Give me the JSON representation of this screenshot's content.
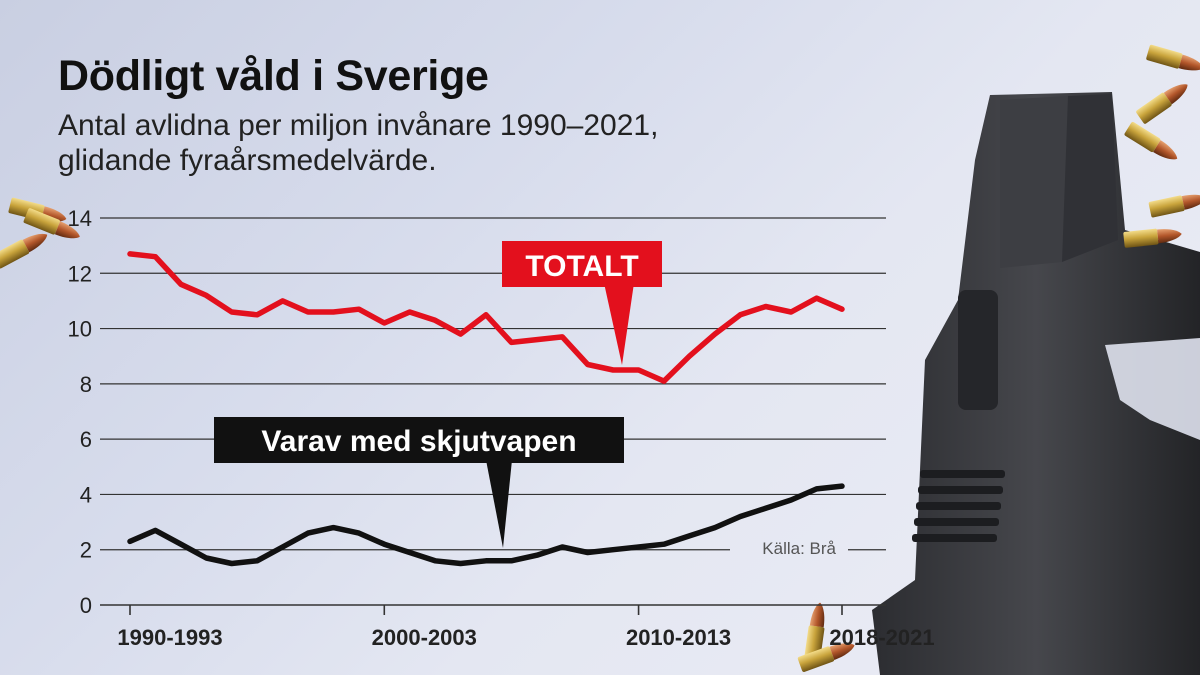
{
  "header": {
    "title": "Dödligt våld i Sverige",
    "subtitle_line1": "Antal avlidna per miljon invånare 1990–2021,",
    "subtitle_line2": "glidande fyraårsmedelvärde."
  },
  "chart_data": {
    "type": "line",
    "title": "Dödligt våld i Sverige",
    "subtitle": "Antal avlidna per miljon invånare 1990–2021, glidande fyraårsmedelvärde.",
    "xlabel": "",
    "ylabel": "",
    "ylim": [
      0,
      14
    ],
    "yticks": [
      0,
      2,
      4,
      6,
      8,
      10,
      12,
      14
    ],
    "grid": true,
    "categories": [
      "1990-1993",
      "1991-1994",
      "1992-1995",
      "1993-1996",
      "1994-1997",
      "1995-1998",
      "1996-1999",
      "1997-2000",
      "1998-2001",
      "1999-2002",
      "2000-2003",
      "2001-2004",
      "2002-2005",
      "2003-2006",
      "2004-2007",
      "2005-2008",
      "2006-2009",
      "2007-2010",
      "2008-2011",
      "2009-2012",
      "2010-2013",
      "2011-2014",
      "2012-2015",
      "2013-2016",
      "2014-2017",
      "2015-2018",
      "2016-2019",
      "2017-2020",
      "2018-2021"
    ],
    "x_tick_labels": [
      "1990-1993",
      "2000-2003",
      "2010-2013",
      "2018-2021"
    ],
    "series": [
      {
        "name": "TOTALT",
        "color": "#e3101d",
        "values": [
          12.7,
          12.6,
          11.6,
          11.2,
          10.6,
          10.5,
          11.0,
          10.6,
          10.6,
          10.7,
          10.2,
          10.6,
          10.3,
          9.8,
          10.5,
          9.5,
          9.6,
          9.7,
          8.7,
          8.5,
          8.5,
          8.1,
          9.0,
          9.8,
          10.5,
          10.8,
          10.6,
          11.1,
          10.7
        ]
      },
      {
        "name": "Varav med skjutvapen",
        "color": "#111111",
        "values": [
          2.3,
          2.7,
          2.2,
          1.7,
          1.5,
          1.6,
          2.1,
          2.6,
          2.8,
          2.6,
          2.2,
          1.9,
          1.6,
          1.5,
          1.6,
          1.6,
          1.8,
          2.1,
          1.9,
          2.0,
          2.1,
          2.2,
          2.5,
          2.8,
          3.2,
          3.5,
          3.8,
          4.2,
          4.3
        ]
      }
    ],
    "annotations": [
      {
        "text": "TOTALT",
        "style": "red-label",
        "points_to_category": "2009-2012"
      },
      {
        "text": "Varav med skjutvapen",
        "style": "black-label",
        "points_to_category": "2004-2007"
      }
    ],
    "source": "Källa: Brå"
  }
}
